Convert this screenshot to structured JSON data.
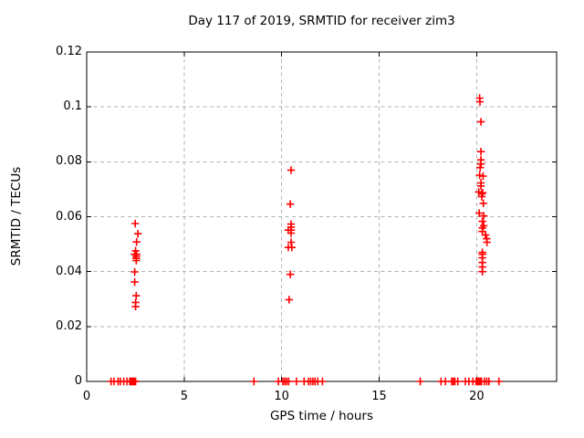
{
  "chart_data": {
    "type": "scatter",
    "title": "Day 117 of 2019, SRMTID for receiver zim3",
    "xlabel": "GPS time / hours",
    "ylabel": "SRMTID / TECUs",
    "xlim": [
      0,
      24.1
    ],
    "ylim": [
      0,
      0.12
    ],
    "x_ticks": [
      0,
      5,
      10,
      15,
      20
    ],
    "x_tick_labels": [
      "0",
      "5",
      "10",
      "15",
      "20"
    ],
    "y_ticks": [
      0,
      0.02,
      0.04,
      0.06,
      0.08,
      0.1,
      0.12
    ],
    "y_tick_labels": [
      "0",
      "0.02",
      "0.04",
      "0.06",
      "0.08",
      "0.1",
      "0.12"
    ],
    "grid": true,
    "grid_style": "dashed",
    "legend_position": "none",
    "marker_shape": "plus",
    "marker_color": "#ff0000",
    "grid_color": "#b3b3b3",
    "border_color": "#000000",
    "series": [
      {
        "name": "SRMTID",
        "points": [
          [
            2.49,
            0.0575
          ],
          [
            2.63,
            0.0538
          ],
          [
            2.56,
            0.0508
          ],
          [
            2.51,
            0.0476
          ],
          [
            2.46,
            0.0463
          ],
          [
            2.56,
            0.0463
          ],
          [
            2.54,
            0.0456
          ],
          [
            2.54,
            0.0448
          ],
          [
            2.54,
            0.044
          ],
          [
            2.46,
            0.0399
          ],
          [
            2.46,
            0.0362
          ],
          [
            2.54,
            0.0312
          ],
          [
            2.51,
            0.0288
          ],
          [
            2.51,
            0.0273
          ],
          [
            10.48,
            0.077
          ],
          [
            10.44,
            0.0646
          ],
          [
            10.48,
            0.0573
          ],
          [
            10.48,
            0.0562
          ],
          [
            10.34,
            0.0551
          ],
          [
            10.48,
            0.0551
          ],
          [
            10.48,
            0.054
          ],
          [
            10.48,
            0.0507
          ],
          [
            10.34,
            0.0488
          ],
          [
            10.52,
            0.0488
          ],
          [
            10.44,
            0.039
          ],
          [
            10.38,
            0.0298
          ],
          [
            20.15,
            0.1032
          ],
          [
            20.17,
            0.1019
          ],
          [
            20.22,
            0.0946
          ],
          [
            20.22,
            0.0837
          ],
          [
            20.22,
            0.0807
          ],
          [
            20.22,
            0.0792
          ],
          [
            20.18,
            0.0779
          ],
          [
            20.15,
            0.0751
          ],
          [
            20.33,
            0.0748
          ],
          [
            20.22,
            0.0723
          ],
          [
            20.22,
            0.0712
          ],
          [
            20.11,
            0.069
          ],
          [
            20.31,
            0.0687
          ],
          [
            20.26,
            0.0683
          ],
          [
            20.26,
            0.0673
          ],
          [
            20.34,
            0.0649
          ],
          [
            20.13,
            0.0613
          ],
          [
            20.36,
            0.0603
          ],
          [
            20.29,
            0.0583
          ],
          [
            20.36,
            0.0567
          ],
          [
            20.29,
            0.0559
          ],
          [
            20.29,
            0.0546
          ],
          [
            20.45,
            0.0534
          ],
          [
            20.51,
            0.052
          ],
          [
            20.53,
            0.0507
          ],
          [
            20.29,
            0.047
          ],
          [
            20.29,
            0.0463
          ],
          [
            20.29,
            0.045
          ],
          [
            20.29,
            0.0433
          ],
          [
            20.29,
            0.0417
          ],
          [
            20.29,
            0.04
          ],
          [
            1.25,
            0
          ],
          [
            1.4,
            0
          ],
          [
            1.61,
            0
          ],
          [
            1.72,
            0
          ],
          [
            1.9,
            0
          ],
          [
            2.07,
            0
          ],
          [
            2.21,
            0
          ],
          [
            2.26,
            0
          ],
          [
            2.31,
            0
          ],
          [
            2.36,
            0
          ],
          [
            2.41,
            0
          ],
          [
            2.46,
            0
          ],
          [
            2.51,
            0
          ],
          [
            8.58,
            0
          ],
          [
            9.83,
            0
          ],
          [
            10.06,
            0
          ],
          [
            10.16,
            0
          ],
          [
            10.26,
            0
          ],
          [
            10.36,
            0
          ],
          [
            10.76,
            0
          ],
          [
            11.15,
            0
          ],
          [
            11.37,
            0
          ],
          [
            11.49,
            0
          ],
          [
            11.6,
            0
          ],
          [
            11.71,
            0
          ],
          [
            11.85,
            0
          ],
          [
            12.09,
            0
          ],
          [
            17.11,
            0
          ],
          [
            18.17,
            0
          ],
          [
            18.4,
            0
          ],
          [
            18.72,
            0
          ],
          [
            18.8,
            0
          ],
          [
            18.88,
            0
          ],
          [
            19.03,
            0
          ],
          [
            19.42,
            0
          ],
          [
            19.6,
            0
          ],
          [
            19.81,
            0
          ],
          [
            19.97,
            0
          ],
          [
            20.04,
            0
          ],
          [
            20.11,
            0
          ],
          [
            20.18,
            0
          ],
          [
            20.25,
            0
          ],
          [
            20.4,
            0
          ],
          [
            20.52,
            0
          ],
          [
            20.63,
            0
          ],
          [
            21.14,
            0
          ]
        ]
      }
    ]
  }
}
